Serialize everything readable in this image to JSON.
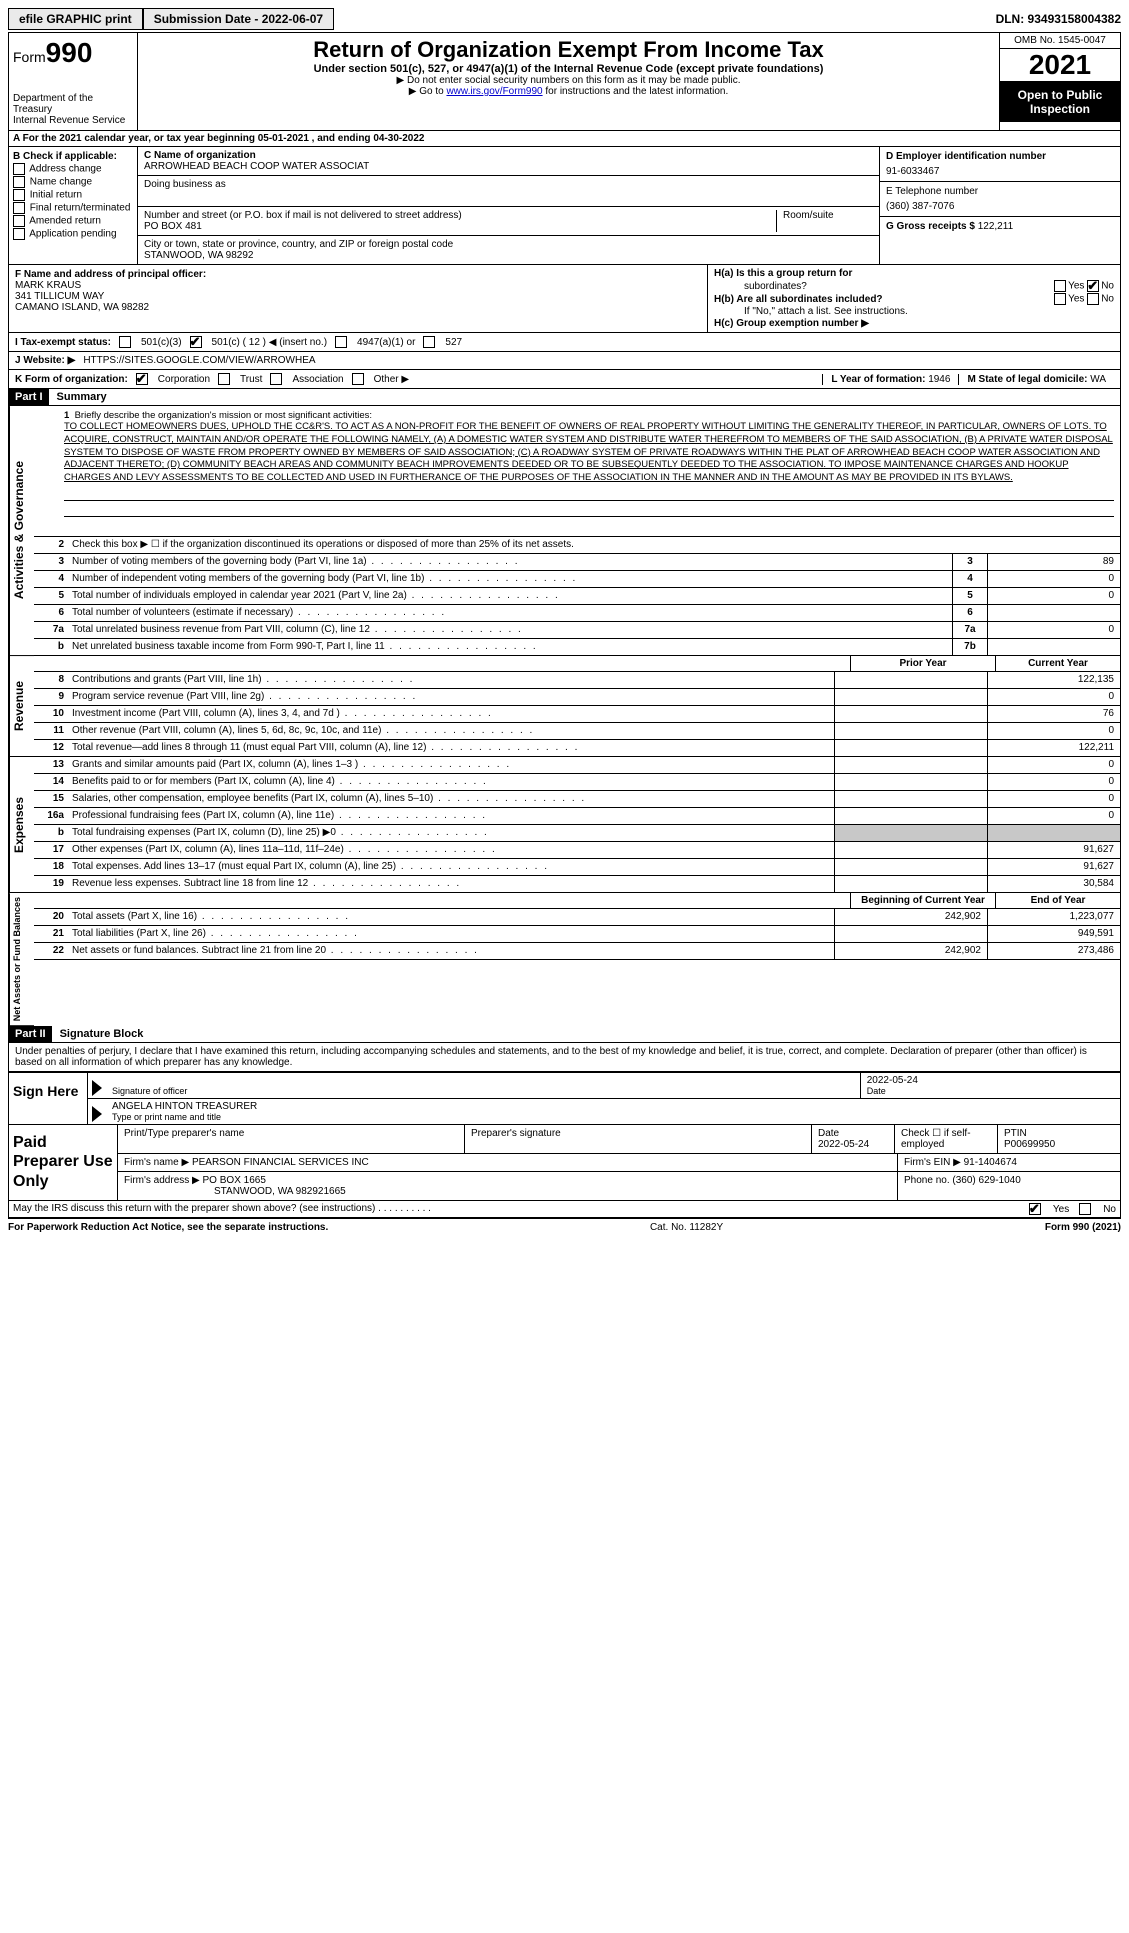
{
  "topbar": {
    "efile": "efile GRAPHIC print",
    "submission": "Submission Date - 2022-06-07",
    "dln": "DLN: 93493158004382"
  },
  "header": {
    "form_prefix": "Form",
    "form_number": "990",
    "title": "Return of Organization Exempt From Income Tax",
    "subtitle": "Under section 501(c), 527, or 4947(a)(1) of the Internal Revenue Code (except private foundations)",
    "note1": "▶ Do not enter social security numbers on this form as it may be made public.",
    "note2_prefix": "▶ Go to ",
    "note2_link": "www.irs.gov/Form990",
    "note2_suffix": " for instructions and the latest information.",
    "dept": "Department of the Treasury\nInternal Revenue Service",
    "omb": "OMB No. 1545-0047",
    "year": "2021",
    "open": "Open to Public Inspection"
  },
  "row_a": "A For the 2021 calendar year, or tax year beginning 05-01-2021   , and ending 04-30-2022",
  "col_b": {
    "label": "B Check if applicable:",
    "items": [
      "Address change",
      "Name change",
      "Initial return",
      "Final return/terminated",
      "Amended return",
      "Application pending"
    ]
  },
  "col_c": {
    "name_label": "C Name of organization",
    "name_value": "ARROWHEAD BEACH COOP WATER ASSOCIAT",
    "dba_label": "Doing business as",
    "street_label": "Number and street (or P.O. box if mail is not delivered to street address)",
    "street_value": "PO BOX 481",
    "suite_label": "Room/suite",
    "city_label": "City or town, state or province, country, and ZIP or foreign postal code",
    "city_value": "STANWOOD, WA  98292",
    "f_label": "F Name and address of principal officer:",
    "f_name": "MARK KRAUS",
    "f_addr1": "341 TILLICUM WAY",
    "f_addr2": "CAMANO ISLAND, WA  98282"
  },
  "col_d": {
    "ein_label": "D Employer identification number",
    "ein": "91-6033467",
    "phone_label": "E Telephone number",
    "phone": "(360) 387-7076",
    "gross_label": "G Gross receipts $",
    "gross": "122,211"
  },
  "col_h": {
    "ha_label": "H(a)  Is this a group return for",
    "ha_sub": "subordinates?",
    "hb_label": "H(b)  Are all subordinates included?",
    "hb_note": "If \"No,\" attach a list. See instructions.",
    "hc_label": "H(c)  Group exemption number ▶"
  },
  "row_i": {
    "label": "I   Tax-exempt status:",
    "opt1": "501(c)(3)",
    "opt2": "501(c) ( 12 ) ◀ (insert no.)",
    "opt3": "4947(a)(1) or",
    "opt4": "527"
  },
  "row_j": {
    "label": "J   Website: ▶",
    "value": "HTTPS://SITES.GOOGLE.COM/VIEW/ARROWHEA"
  },
  "row_k": {
    "label": "K Form of organization:",
    "opts": [
      "Corporation",
      "Trust",
      "Association",
      "Other ▶"
    ],
    "l_label": "L Year of formation:",
    "l_value": "1946",
    "m_label": "M State of legal domicile:",
    "m_value": "WA"
  },
  "part1": {
    "header": "Part I",
    "title": "Summary",
    "line1_label": "Briefly describe the organization's mission or most significant activities:",
    "mission": "TO COLLECT HOMEOWNERS DUES, UPHOLD THE CC&R'S. TO ACT AS A NON-PROFIT FOR THE BENEFIT OF OWNERS OF REAL PROPERTY WITHOUT LIMITING THE GENERALITY THEREOF, IN PARTICULAR, OWNERS OF LOTS. TO ACQUIRE, CONSTRUCT, MAINTAIN AND/OR OPERATE THE FOLLOWING NAMELY, (A) A DOMESTIC WATER SYSTEM AND DISTRIBUTE WATER THEREFROM TO MEMBERS OF THE SAID ASSOCIATION, (B) A PRIVATE WATER DISPOSAL SYSTEM TO DISPOSE OF WASTE FROM PROPERTY OWNED BY MEMBERS OF SAID ASSOCIATION; (C) A ROADWAY SYSTEM OF PRIVATE ROADWAYS WITHIN THE PLAT OF ARROWHEAD BEACH COOP WATER ASSOCIATION AND ADJACENT THERETO; (D) COMMUNITY BEACH AREAS AND COMMUNITY BEACH IMPROVEMENTS DEEDED OR TO BE SUBSEQUENTLY DEEDED TO THE ASSOCIATION. TO IMPOSE MAINTENANCE CHARGES AND HOOKUP CHARGES AND LEVY ASSESSMENTS TO BE COLLECTED AND USED IN FURTHERANCE OF THE PURPOSES OF THE ASSOCIATION IN THE MANNER AND IN THE AMOUNT AS MAY BE PROVIDED IN ITS BYLAWS.",
    "line2": "Check this box ▶ ☐ if the organization discontinued its operations or disposed of more than 25% of its net assets.",
    "lines_simple": [
      {
        "n": "3",
        "d": "Number of voting members of the governing body (Part VI, line 1a)",
        "box": "3",
        "v": "89"
      },
      {
        "n": "4",
        "d": "Number of independent voting members of the governing body (Part VI, line 1b)",
        "box": "4",
        "v": "0"
      },
      {
        "n": "5",
        "d": "Total number of individuals employed in calendar year 2021 (Part V, line 2a)",
        "box": "5",
        "v": "0"
      },
      {
        "n": "6",
        "d": "Total number of volunteers (estimate if necessary)",
        "box": "6",
        "v": ""
      },
      {
        "n": "7a",
        "d": "Total unrelated business revenue from Part VIII, column (C), line 12",
        "box": "7a",
        "v": "0"
      },
      {
        "n": "b",
        "d": "Net unrelated business taxable income from Form 990-T, Part I, line 11",
        "box": "7b",
        "v": ""
      }
    ],
    "hdr_prior": "Prior Year",
    "hdr_curr": "Current Year",
    "revenue": [
      {
        "n": "8",
        "d": "Contributions and grants (Part VIII, line 1h)",
        "p": "",
        "c": "122,135"
      },
      {
        "n": "9",
        "d": "Program service revenue (Part VIII, line 2g)",
        "p": "",
        "c": "0"
      },
      {
        "n": "10",
        "d": "Investment income (Part VIII, column (A), lines 3, 4, and 7d )",
        "p": "",
        "c": "76"
      },
      {
        "n": "11",
        "d": "Other revenue (Part VIII, column (A), lines 5, 6d, 8c, 9c, 10c, and 11e)",
        "p": "",
        "c": "0"
      },
      {
        "n": "12",
        "d": "Total revenue—add lines 8 through 11 (must equal Part VIII, column (A), line 12)",
        "p": "",
        "c": "122,211"
      }
    ],
    "expenses": [
      {
        "n": "13",
        "d": "Grants and similar amounts paid (Part IX, column (A), lines 1–3 )",
        "p": "",
        "c": "0"
      },
      {
        "n": "14",
        "d": "Benefits paid to or for members (Part IX, column (A), line 4)",
        "p": "",
        "c": "0"
      },
      {
        "n": "15",
        "d": "Salaries, other compensation, employee benefits (Part IX, column (A), lines 5–10)",
        "p": "",
        "c": "0"
      },
      {
        "n": "16a",
        "d": "Professional fundraising fees (Part IX, column (A), line 11e)",
        "p": "",
        "c": "0"
      },
      {
        "n": "b",
        "d": "Total fundraising expenses (Part IX, column (D), line 25) ▶0",
        "p": "shade",
        "c": "shade"
      },
      {
        "n": "17",
        "d": "Other expenses (Part IX, column (A), lines 11a–11d, 11f–24e)",
        "p": "",
        "c": "91,627"
      },
      {
        "n": "18",
        "d": "Total expenses. Add lines 13–17 (must equal Part IX, column (A), line 25)",
        "p": "",
        "c": "91,627"
      },
      {
        "n": "19",
        "d": "Revenue less expenses. Subtract line 18 from line 12",
        "p": "",
        "c": "30,584"
      }
    ],
    "hdr_begin": "Beginning of Current Year",
    "hdr_end": "End of Year",
    "netassets": [
      {
        "n": "20",
        "d": "Total assets (Part X, line 16)",
        "p": "242,902",
        "c": "1,223,077"
      },
      {
        "n": "21",
        "d": "Total liabilities (Part X, line 26)",
        "p": "",
        "c": "949,591"
      },
      {
        "n": "22",
        "d": "Net assets or fund balances. Subtract line 21 from line 20",
        "p": "242,902",
        "c": "273,486"
      }
    ]
  },
  "part2": {
    "header": "Part II",
    "title": "Signature Block",
    "declaration": "Under penalties of perjury, I declare that I have examined this return, including accompanying schedules and statements, and to the best of my knowledge and belief, it is true, correct, and complete. Declaration of preparer (other than officer) is based on all information of which preparer has any knowledge.",
    "sign_here": "Sign Here",
    "sig_officer_label": "Signature of officer",
    "date_label": "Date",
    "date_value": "2022-05-24",
    "officer_name": "ANGELA HINTON  TREASURER",
    "officer_type_label": "Type or print name and title",
    "paid": "Paid Preparer Use Only",
    "prep_name_label": "Print/Type preparer's name",
    "prep_sig_label": "Preparer's signature",
    "prep_date_label": "Date",
    "prep_date": "2022-05-24",
    "self_emp": "Check ☐ if self-employed",
    "ptin_label": "PTIN",
    "ptin": "P00699950",
    "firm_name_label": "Firm's name      ▶",
    "firm_name": "PEARSON FINANCIAL SERVICES INC",
    "firm_ein_label": "Firm's EIN ▶",
    "firm_ein": "91-1404674",
    "firm_addr_label": "Firm's address ▶",
    "firm_addr1": "PO BOX 1665",
    "firm_addr2": "STANWOOD, WA  982921665",
    "firm_phone_label": "Phone no.",
    "firm_phone": "(360) 629-1040",
    "discuss": "May the IRS discuss this return with the preparer shown above? (see instructions)",
    "yes": "Yes",
    "no": "No"
  },
  "footer": {
    "pra": "For Paperwork Reduction Act Notice, see the separate instructions.",
    "cat": "Cat. No. 11282Y",
    "form": "Form 990 (2021)"
  },
  "side_labels": {
    "activities": "Activities & Governance",
    "revenue": "Revenue",
    "expenses": "Expenses",
    "netassets": "Net Assets or Fund Balances"
  }
}
